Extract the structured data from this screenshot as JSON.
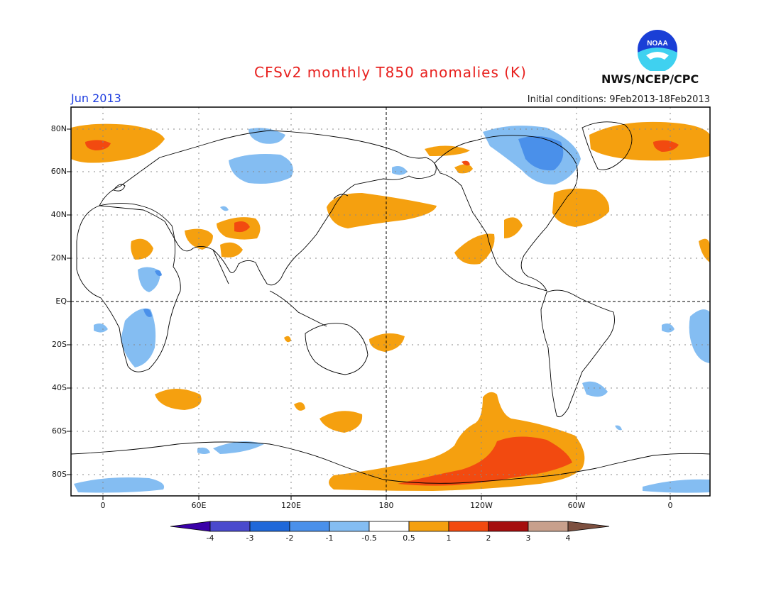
{
  "header": {
    "title": "CFSv2 monthly T850 anomalies (K)",
    "month": "Jun 2013",
    "initial_conditions": "Initial conditions: 9Feb2013-18Feb2013",
    "agency": "NWS/NCEP/CPC",
    "logo_text": "NOAA"
  },
  "axes": {
    "y_ticks": [
      "80N",
      "60N",
      "40N",
      "20N",
      "EQ",
      "20S",
      "40S",
      "60S",
      "80S"
    ],
    "x_ticks": [
      "0",
      "60E",
      "120E",
      "180",
      "120W",
      "60W",
      "0"
    ]
  },
  "colorbar": {
    "labels": [
      "-4",
      "-3",
      "-2",
      "-1",
      "-0.5",
      "0.5",
      "1",
      "2",
      "3",
      "4"
    ],
    "colors": [
      "#3a00a8",
      "#4a4acd",
      "#1f68d9",
      "#4a90ea",
      "#84bdf2",
      "#ffffff",
      "#f5a00f",
      "#f24a10",
      "#a50e0e",
      "#c8a08c",
      "#7d5040"
    ]
  }
}
